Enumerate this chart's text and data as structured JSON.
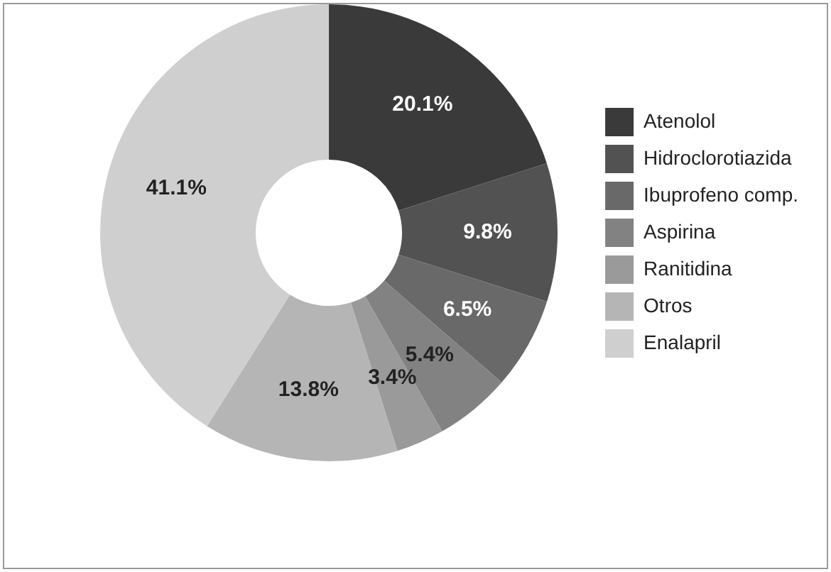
{
  "chart_data": {
    "type": "donut",
    "categories": [
      "Atenolol",
      "Hidroclorotiazida",
      "Ibuprofeno comp.",
      "Aspirina",
      "Ranitidina",
      "Otros",
      "Enalapril"
    ],
    "values": [
      20.1,
      9.8,
      6.5,
      5.4,
      3.4,
      13.8,
      41.1
    ],
    "colors": [
      "#3a3a3a",
      "#525252",
      "#696969",
      "#828282",
      "#9a9a9a",
      "#b5b5b5",
      "#cfcfcf"
    ],
    "value_labels": [
      "20.1%",
      "9.8%",
      "6.5%",
      "5.4%",
      "3.4%",
      "13.8%",
      "41.1%"
    ],
    "legend": "right"
  }
}
